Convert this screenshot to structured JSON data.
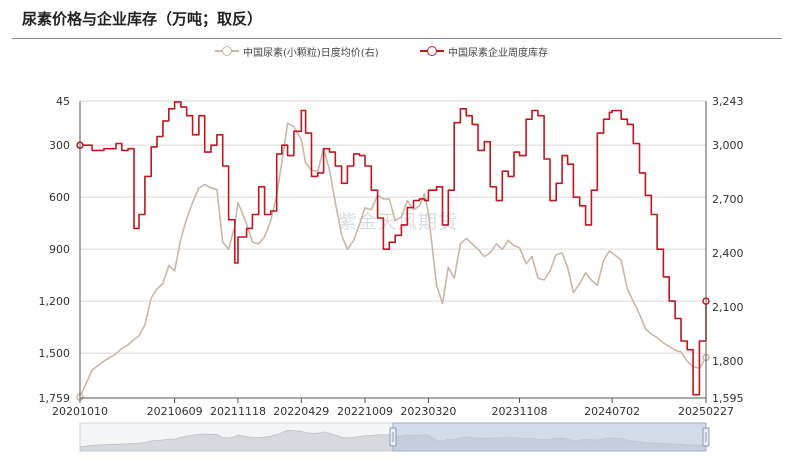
{
  "title": "尿素价格与企业库存（万吨；取反）",
  "legend": [
    {
      "label": "中国尿素(小颗粒)日度均价(右)",
      "color": "#c8b8a6"
    },
    {
      "label": "中国尿素企业周度库存",
      "color": "#c0161e"
    }
  ],
  "watermark": "紫金天风期货",
  "chart_data": {
    "type": "line",
    "x_ticks": [
      "20201010",
      "20210609",
      "20211118",
      "20220429",
      "20221009",
      "20230320",
      "20231108",
      "20240702",
      "20250227"
    ],
    "left_axis": {
      "ticks": [
        "45",
        "300",
        "600",
        "900",
        "1,200",
        "1,500",
        "1,759"
      ],
      "min": 45,
      "max": 1759,
      "inverted": true
    },
    "right_axis": {
      "ticks": [
        "3,243",
        "3,000",
        "2,700",
        "2,400",
        "2,100",
        "1,800",
        "1,595"
      ],
      "min": 1595,
      "max": 3243
    },
    "grid": true,
    "legend_position": "top-center",
    "series": [
      {
        "name": "中国尿素企业周度库存",
        "color": "#c0161e",
        "axis": "left",
        "step": true,
        "x": [
          "2020-10-10",
          "2020-11-10",
          "2020-12-10",
          "2021-01-10",
          "2021-01-25",
          "2021-02-10",
          "2021-02-25",
          "2021-03-10",
          "2021-03-25",
          "2021-04-10",
          "2021-04-25",
          "2021-05-10",
          "2021-05-25",
          "2021-06-09",
          "2021-06-25",
          "2021-07-10",
          "2021-07-25",
          "2021-08-10",
          "2021-08-25",
          "2021-09-10",
          "2021-09-25",
          "2021-10-10",
          "2021-10-25",
          "2021-11-10",
          "2021-11-18",
          "2021-12-10",
          "2021-12-25",
          "2022-01-10",
          "2022-01-25",
          "2022-02-10",
          "2022-02-25",
          "2022-03-10",
          "2022-03-25",
          "2022-04-10",
          "2022-04-29",
          "2022-05-10",
          "2022-05-25",
          "2022-06-10",
          "2022-06-25",
          "2022-07-10",
          "2022-07-25",
          "2022-08-10",
          "2022-08-25",
          "2022-09-10",
          "2022-09-25",
          "2022-10-09",
          "2022-10-25",
          "2022-11-10",
          "2022-11-25",
          "2022-12-10",
          "2022-12-25",
          "2023-01-10",
          "2023-01-25",
          "2023-02-10",
          "2023-02-25",
          "2023-03-10",
          "2023-03-20",
          "2023-04-10",
          "2023-04-25",
          "2023-05-10",
          "2023-05-25",
          "2023-06-10",
          "2023-06-25",
          "2023-07-10",
          "2023-07-25",
          "2023-08-10",
          "2023-08-25",
          "2023-09-10",
          "2023-09-25",
          "2023-10-10",
          "2023-10-25",
          "2023-11-08",
          "2023-11-25",
          "2023-12-10",
          "2023-12-25",
          "2024-01-10",
          "2024-01-25",
          "2024-02-10",
          "2024-02-25",
          "2024-03-10",
          "2024-03-25",
          "2024-04-10",
          "2024-04-25",
          "2024-05-10",
          "2024-05-25",
          "2024-06-10",
          "2024-06-25",
          "2024-07-02",
          "2024-07-25",
          "2024-08-10",
          "2024-08-25",
          "2024-09-10",
          "2024-09-25",
          "2024-10-10",
          "2024-10-25",
          "2024-11-10",
          "2024-11-25",
          "2024-12-10",
          "2024-12-25",
          "2025-01-10",
          "2025-01-25",
          "2025-02-10",
          "2025-02-27"
        ],
        "y": [
          300,
          330,
          320,
          290,
          330,
          320,
          780,
          700,
          480,
          310,
          250,
          160,
          90,
          50,
          80,
          130,
          240,
          130,
          340,
          300,
          240,
          420,
          730,
          980,
          830,
          780,
          700,
          540,
          700,
          680,
          350,
          300,
          360,
          220,
          100,
          230,
          480,
          460,
          320,
          340,
          420,
          520,
          420,
          350,
          360,
          420,
          560,
          720,
          900,
          860,
          820,
          760,
          660,
          620,
          610,
          620,
          560,
          540,
          760,
          560,
          170,
          90,
          130,
          180,
          330,
          280,
          540,
          620,
          450,
          480,
          340,
          360,
          150,
          100,
          130,
          380,
          620,
          520,
          360,
          410,
          600,
          650,
          760,
          560,
          230,
          150,
          110,
          100,
          150,
          180,
          290,
          460,
          590,
          700,
          900,
          1060,
          1200,
          1300,
          1430,
          1480,
          1740,
          1430,
          1200
        ]
      },
      {
        "name": "中国尿素(小颗粒)日度均价(右)",
        "color": "#c8b8a6",
        "axis": "right",
        "step": false,
        "x": [
          "2020-10-10",
          "2020-11-10",
          "2020-12-10",
          "2021-01-10",
          "2021-01-25",
          "2021-02-10",
          "2021-02-25",
          "2021-03-10",
          "2021-03-25",
          "2021-04-10",
          "2021-04-25",
          "2021-05-10",
          "2021-05-25",
          "2021-06-09",
          "2021-06-25",
          "2021-07-10",
          "2021-07-25",
          "2021-08-10",
          "2021-08-25",
          "2021-09-10",
          "2021-09-25",
          "2021-10-10",
          "2021-10-25",
          "2021-11-10",
          "2021-11-18",
          "2021-12-10",
          "2021-12-25",
          "2022-01-10",
          "2022-01-25",
          "2022-02-10",
          "2022-02-25",
          "2022-03-10",
          "2022-03-25",
          "2022-04-10",
          "2022-04-29",
          "2022-05-10",
          "2022-05-25",
          "2022-06-10",
          "2022-06-25",
          "2022-07-10",
          "2022-07-25",
          "2022-08-10",
          "2022-08-25",
          "2022-09-10",
          "2022-09-25",
          "2022-10-09",
          "2022-10-25",
          "2022-11-10",
          "2022-11-25",
          "2022-12-10",
          "2022-12-25",
          "2023-01-10",
          "2023-01-25",
          "2023-02-10",
          "2023-02-25",
          "2023-03-10",
          "2023-03-20",
          "2023-04-10",
          "2023-04-25",
          "2023-05-10",
          "2023-05-25",
          "2023-06-10",
          "2023-06-25",
          "2023-07-10",
          "2023-07-25",
          "2023-08-10",
          "2023-08-25",
          "2023-09-10",
          "2023-09-25",
          "2023-10-10",
          "2023-10-25",
          "2023-11-08",
          "2023-11-25",
          "2023-12-10",
          "2023-12-25",
          "2024-01-10",
          "2024-01-25",
          "2024-02-10",
          "2024-02-25",
          "2024-03-10",
          "2024-03-25",
          "2024-04-10",
          "2024-04-25",
          "2024-05-10",
          "2024-05-25",
          "2024-06-10",
          "2024-06-25",
          "2024-07-02",
          "2024-07-25",
          "2024-08-10",
          "2024-08-25",
          "2024-09-10",
          "2024-09-25",
          "2024-10-10",
          "2024-10-25",
          "2024-11-10",
          "2024-11-25",
          "2024-12-10",
          "2024-12-25",
          "2025-01-10",
          "2025-01-25",
          "2025-02-10",
          "2025-02-27"
        ],
        "y": [
          1600,
          1750,
          1800,
          1840,
          1870,
          1890,
          1920,
          1940,
          2000,
          2150,
          2200,
          2230,
          2330,
          2300,
          2480,
          2590,
          2680,
          2760,
          2780,
          2760,
          2750,
          2460,
          2420,
          2550,
          2680,
          2560,
          2460,
          2450,
          2490,
          2580,
          2720,
          2900,
          3120,
          3100,
          3030,
          2900,
          2860,
          2850,
          2980,
          2860,
          2680,
          2500,
          2420,
          2470,
          2560,
          2650,
          2640,
          2720,
          2700,
          2700,
          2580,
          2600,
          2690,
          2640,
          2660,
          2730,
          2620,
          2220,
          2120,
          2320,
          2260,
          2450,
          2480,
          2450,
          2420,
          2380,
          2400,
          2450,
          2420,
          2470,
          2440,
          2430,
          2340,
          2380,
          2260,
          2250,
          2300,
          2390,
          2400,
          2320,
          2180,
          2230,
          2290,
          2250,
          2220,
          2360,
          2410,
          2400,
          2360,
          2200,
          2130,
          2060,
          1980,
          1950,
          1930,
          1900,
          1880,
          1860,
          1850,
          1800,
          1770,
          1760,
          1820
        ]
      }
    ]
  }
}
